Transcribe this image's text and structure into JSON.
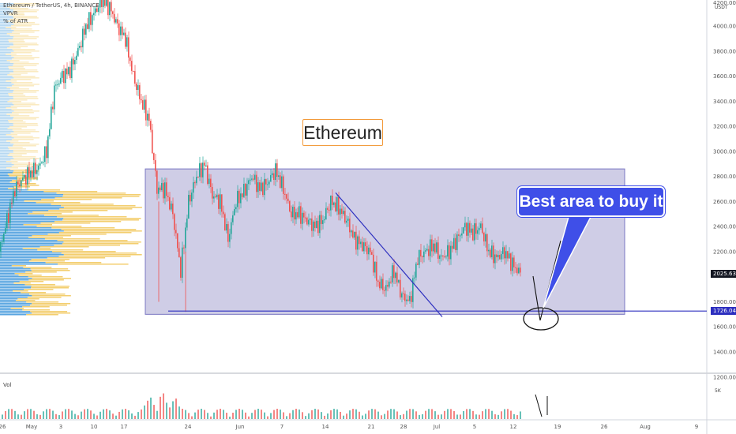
{
  "header": {
    "symbol_line": "Ethereum / TetherUS, 4h, BINANCE",
    "indicator": "VPVR",
    "atr": "% of ATR",
    "currency": "USDT"
  },
  "annotations": {
    "title_box": "Ethereum",
    "callout": "Best area to buy it"
  },
  "price_tags": {
    "current": "2025.63",
    "support": "1726.04"
  },
  "volume_pane": {
    "label": "Vol",
    "scale_label": "5K"
  },
  "chart_data": {
    "type": "candlestick",
    "price_axis": {
      "ticks": [
        "4000.00",
        "3800.00",
        "3600.00",
        "3400.00",
        "3200.00",
        "3000.00",
        "2800.00",
        "2600.00",
        "2400.00",
        "2200.00",
        "1800.00",
        "1600.00",
        "1400.00",
        "1200.00"
      ],
      "top_partial": "4200.00"
    },
    "time_axis": {
      "ticks": [
        "26",
        "May",
        "3",
        "10",
        "17",
        "24",
        "Jun",
        "7",
        "14",
        "21",
        "28",
        "Jul",
        "5",
        "12",
        "19",
        "26",
        "Aug",
        "9"
      ]
    },
    "price_path": [
      [
        0,
        2200
      ],
      [
        10,
        2450
      ],
      [
        20,
        2700
      ],
      [
        30,
        2780
      ],
      [
        40,
        2830
      ],
      [
        50,
        2870
      ],
      [
        60,
        3000
      ],
      [
        70,
        3500
      ],
      [
        80,
        3600
      ],
      [
        90,
        3650
      ],
      [
        100,
        3800
      ],
      [
        110,
        4000
      ],
      [
        120,
        4100
      ],
      [
        130,
        4200
      ],
      [
        140,
        4150
      ],
      [
        150,
        4000
      ],
      [
        160,
        3900
      ],
      [
        170,
        3600
      ],
      [
        180,
        3400
      ],
      [
        190,
        3250
      ],
      [
        200,
        2700
      ],
      [
        210,
        2700
      ],
      [
        220,
        2500
      ],
      [
        230,
        2050
      ],
      [
        240,
        2600
      ],
      [
        250,
        2800
      ],
      [
        260,
        2900
      ],
      [
        270,
        2650
      ],
      [
        280,
        2600
      ],
      [
        290,
        2300
      ],
      [
        300,
        2600
      ],
      [
        310,
        2680
      ],
      [
        320,
        2800
      ],
      [
        330,
        2700
      ],
      [
        340,
        2750
      ],
      [
        350,
        2850
      ],
      [
        360,
        2700
      ],
      [
        370,
        2500
      ],
      [
        380,
        2500
      ],
      [
        390,
        2450
      ],
      [
        400,
        2400
      ],
      [
        410,
        2450
      ],
      [
        420,
        2600
      ],
      [
        430,
        2550
      ],
      [
        440,
        2450
      ],
      [
        450,
        2300
      ],
      [
        460,
        2250
      ],
      [
        470,
        2200
      ],
      [
        480,
        1950
      ],
      [
        490,
        1900
      ],
      [
        500,
        2050
      ],
      [
        510,
        1850
      ],
      [
        520,
        1800
      ],
      [
        530,
        2150
      ],
      [
        540,
        2200
      ],
      [
        550,
        2250
      ],
      [
        560,
        2150
      ],
      [
        570,
        2200
      ],
      [
        580,
        2300
      ],
      [
        590,
        2400
      ],
      [
        600,
        2350
      ],
      [
        610,
        2400
      ],
      [
        620,
        2200
      ],
      [
        630,
        2150
      ],
      [
        640,
        2200
      ],
      [
        650,
        2100
      ],
      [
        660,
        2025
      ]
    ],
    "support_level": 1726.04,
    "range_box": {
      "top_price": 2860,
      "bottom_price": 1700
    },
    "trendline": {
      "from": [
        425,
        2670
      ],
      "to": [
        560,
        1680
      ]
    }
  },
  "colors": {
    "up": "#26a69a",
    "down": "#ef5350",
    "box_fill": "#9590c8",
    "line_blue": "#2d2fbf",
    "vp_blue": "#2f8fd8",
    "vp_yellow": "#f0c24a"
  }
}
